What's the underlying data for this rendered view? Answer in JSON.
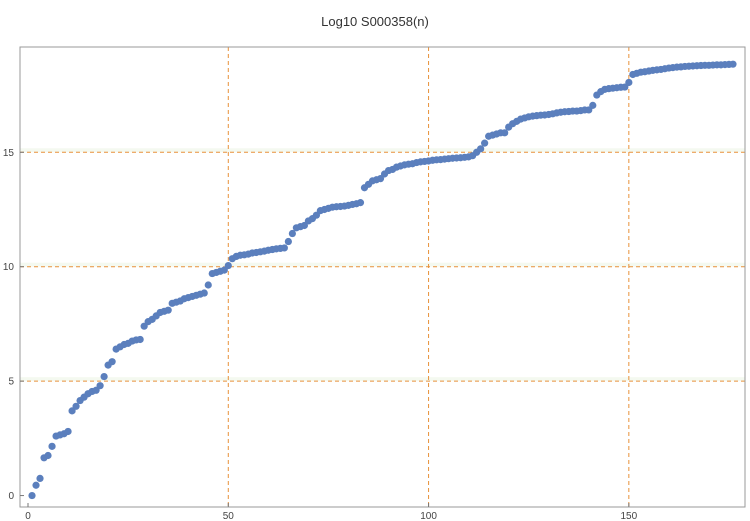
{
  "chart_data": {
    "type": "scatter",
    "title": "Log10 S000358(n)",
    "xlabel": "",
    "ylabel": "",
    "xlim": [
      -2,
      179
    ],
    "ylim": [
      -0.5,
      19.6
    ],
    "x_ticks": [
      0,
      50,
      100,
      150
    ],
    "y_ticks": [
      0,
      5,
      10,
      15
    ],
    "grid": "dashed orange at x=50,100,150 and y=5,10,15",
    "marker_color": "#5b7fbd",
    "grid_color": "#e8913a",
    "series": [
      {
        "x": [
          1,
          2,
          3,
          4,
          5,
          6,
          7,
          8,
          9,
          10,
          11,
          12,
          13,
          14,
          15,
          16,
          17,
          18,
          19,
          20,
          21,
          22,
          23,
          24,
          25,
          26,
          27,
          28,
          29,
          30,
          31,
          32,
          33,
          34,
          35,
          36,
          37,
          38,
          39,
          40,
          41,
          42,
          43,
          44,
          45,
          46,
          47,
          48,
          49,
          50,
          51,
          52,
          53,
          54,
          55,
          56,
          57,
          58,
          59,
          60,
          61,
          62,
          63,
          64,
          65,
          66,
          67,
          68,
          69,
          70,
          71,
          72,
          73,
          74,
          75,
          76,
          77,
          78,
          79,
          80,
          81,
          82,
          83,
          84,
          85,
          86,
          87,
          88,
          89,
          90,
          91,
          92,
          93,
          94,
          95,
          96,
          97,
          98,
          99,
          100,
          101,
          102,
          103,
          104,
          105,
          106,
          107,
          108,
          109,
          110,
          111,
          112,
          113,
          114,
          115,
          116,
          117,
          118,
          119,
          120,
          121,
          122,
          123,
          124,
          125,
          126,
          127,
          128,
          129,
          130,
          131,
          132,
          133,
          134,
          135,
          136,
          137,
          138,
          139,
          140,
          141,
          142,
          143,
          144,
          145,
          146,
          147,
          148,
          149,
          150,
          151,
          152,
          153,
          154,
          155,
          156,
          157,
          158,
          159,
          160,
          161,
          162,
          163,
          164,
          165,
          166,
          167,
          168,
          169,
          170,
          171,
          172,
          173,
          174,
          175,
          176
        ],
        "values": [
          0.0,
          0.45,
          0.75,
          1.65,
          1.75,
          2.15,
          2.6,
          2.65,
          2.7,
          2.8,
          3.7,
          3.9,
          4.15,
          4.3,
          4.45,
          4.55,
          4.6,
          4.8,
          5.2,
          5.7,
          5.85,
          6.4,
          6.5,
          6.6,
          6.65,
          6.75,
          6.8,
          6.82,
          7.4,
          7.6,
          7.7,
          7.85,
          8.0,
          8.05,
          8.1,
          8.4,
          8.45,
          8.5,
          8.6,
          8.65,
          8.7,
          8.75,
          8.8,
          8.85,
          9.2,
          9.7,
          9.75,
          9.8,
          9.85,
          10.05,
          10.35,
          10.45,
          10.5,
          10.52,
          10.55,
          10.6,
          10.62,
          10.65,
          10.68,
          10.72,
          10.75,
          10.78,
          10.8,
          10.82,
          11.1,
          11.45,
          11.7,
          11.75,
          11.8,
          12.0,
          12.1,
          12.25,
          12.45,
          12.5,
          12.55,
          12.6,
          12.62,
          12.63,
          12.65,
          12.68,
          12.72,
          12.75,
          12.8,
          13.45,
          13.6,
          13.75,
          13.8,
          13.85,
          14.05,
          14.2,
          14.25,
          14.35,
          14.4,
          14.45,
          14.48,
          14.5,
          14.55,
          14.58,
          14.6,
          14.62,
          14.65,
          14.67,
          14.68,
          14.7,
          14.72,
          14.74,
          14.75,
          14.76,
          14.78,
          14.8,
          14.85,
          15.0,
          15.15,
          15.4,
          15.7,
          15.75,
          15.8,
          15.85,
          15.85,
          16.1,
          16.25,
          16.35,
          16.45,
          16.5,
          16.55,
          16.58,
          16.6,
          16.62,
          16.63,
          16.65,
          16.68,
          16.72,
          16.75,
          16.77,
          16.78,
          16.8,
          16.8,
          16.82,
          16.85,
          16.85,
          17.05,
          17.5,
          17.65,
          17.75,
          17.78,
          17.8,
          17.82,
          17.84,
          17.85,
          18.05,
          18.4,
          18.45,
          18.5,
          18.52,
          18.55,
          18.58,
          18.6,
          18.62,
          18.65,
          18.68,
          18.7,
          18.72,
          18.73,
          18.75,
          18.76,
          18.77,
          18.78,
          18.79,
          18.8,
          18.8,
          18.81,
          18.82,
          18.82,
          18.83,
          18.84,
          18.85
        ]
      }
    ]
  }
}
